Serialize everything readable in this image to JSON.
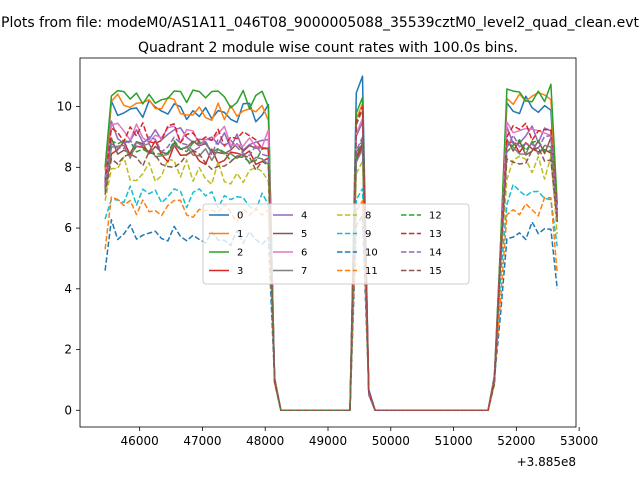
{
  "figure": {
    "suptitle": "Plots from file: modeM0/AS1A11_046T08_9000005088_35539cztM0_level2_quad_clean.evt",
    "title": "Quadrant 2 module wise count rates with 100.0s bins.",
    "x_offset_text": "+3.885e8"
  },
  "chart_data": {
    "type": "line",
    "title": "Quadrant 2 module wise count rates with 100.0s bins.",
    "xlabel": "",
    "ylabel": "",
    "x_offset": 388500000,
    "xlim": [
      45050,
      52950
    ],
    "ylim": [
      -0.55,
      11.6
    ],
    "x_ticks": [
      46000,
      47000,
      48000,
      49000,
      50000,
      51000,
      52000,
      53000
    ],
    "y_ticks": [
      0,
      2,
      4,
      6,
      8,
      10
    ],
    "grid": false,
    "legend_position": "center",
    "legend_columns": 4,
    "segments": [
      {
        "start": 45450,
        "end": 48050
      },
      {
        "start": 48050,
        "end": 49250,
        "mode": "ramp_down"
      },
      {
        "start": 49250,
        "end": 49750,
        "mode": "spike"
      },
      {
        "start": 49750,
        "end": 51650,
        "mode": "zero"
      },
      {
        "start": 51650,
        "end": 52650
      }
    ],
    "series": [
      {
        "name": "0",
        "color": "#1f77b4",
        "dash": "solid",
        "level": 10.0,
        "noise": 0.35,
        "first": 7.6,
        "last": 6.2,
        "spike": 11.0
      },
      {
        "name": "1",
        "color": "#ff7f0e",
        "dash": "solid",
        "level": 10.1,
        "noise": 0.4,
        "first": 7.9,
        "last": 6.5,
        "spike": 10.1
      },
      {
        "name": "2",
        "color": "#2ca02c",
        "dash": "solid",
        "level": 10.4,
        "noise": 0.35,
        "first": 8.0,
        "last": 6.8,
        "spike": 10.3
      },
      {
        "name": "3",
        "color": "#d62728",
        "dash": "solid",
        "level": 8.6,
        "noise": 0.35,
        "first": 7.2,
        "last": 6.3,
        "spike": 8.7
      },
      {
        "name": "4",
        "color": "#9467bd",
        "dash": "solid",
        "level": 9.1,
        "noise": 0.35,
        "first": 7.4,
        "last": 6.4,
        "spike": 9.5
      },
      {
        "name": "5",
        "color": "#8c564b",
        "dash": "solid",
        "level": 8.7,
        "noise": 0.3,
        "first": 7.3,
        "last": 6.3,
        "spike": 8.8
      },
      {
        "name": "6",
        "color": "#e377c2",
        "dash": "solid",
        "level": 9.2,
        "noise": 0.35,
        "first": 7.5,
        "last": 6.4,
        "spike": 9.6
      },
      {
        "name": "7",
        "color": "#7f7f7f",
        "dash": "solid",
        "level": 8.6,
        "noise": 0.3,
        "first": 7.2,
        "last": 6.3,
        "spike": 8.6
      },
      {
        "name": "8",
        "color": "#bcbd22",
        "dash": "dashed",
        "level": 8.0,
        "noise": 0.4,
        "first": 6.9,
        "last": 5.8,
        "spike": 8.2
      },
      {
        "name": "9",
        "color": "#17becf",
        "dash": "dashed",
        "level": 7.1,
        "noise": 0.35,
        "first": 6.3,
        "last": 5.4,
        "spike": 7.3
      },
      {
        "name": "10",
        "color": "#1f77b4",
        "dash": "dashed",
        "level": 5.9,
        "noise": 0.3,
        "first": 4.6,
        "last": 4.0,
        "spike": 6.4
      },
      {
        "name": "11",
        "color": "#ff7f0e",
        "dash": "dashed",
        "level": 6.7,
        "noise": 0.35,
        "first": 5.3,
        "last": 4.5,
        "spike": 6.9
      },
      {
        "name": "12",
        "color": "#2ca02c",
        "dash": "dashed",
        "level": 8.7,
        "noise": 0.3,
        "first": 7.3,
        "last": 6.4,
        "spike": 8.9
      },
      {
        "name": "13",
        "color": "#d62728",
        "dash": "dashed",
        "level": 9.2,
        "noise": 0.35,
        "first": 7.5,
        "last": 6.6,
        "spike": 10.0
      },
      {
        "name": "14",
        "color": "#9467bd",
        "dash": "dashed",
        "level": 8.8,
        "noise": 0.3,
        "first": 7.4,
        "last": 6.4,
        "spike": 9.0
      },
      {
        "name": "15",
        "color": "#8c564b",
        "dash": "dashed",
        "level": 8.4,
        "noise": 0.3,
        "first": 7.1,
        "last": 6.2,
        "spike": 9.9
      }
    ]
  }
}
